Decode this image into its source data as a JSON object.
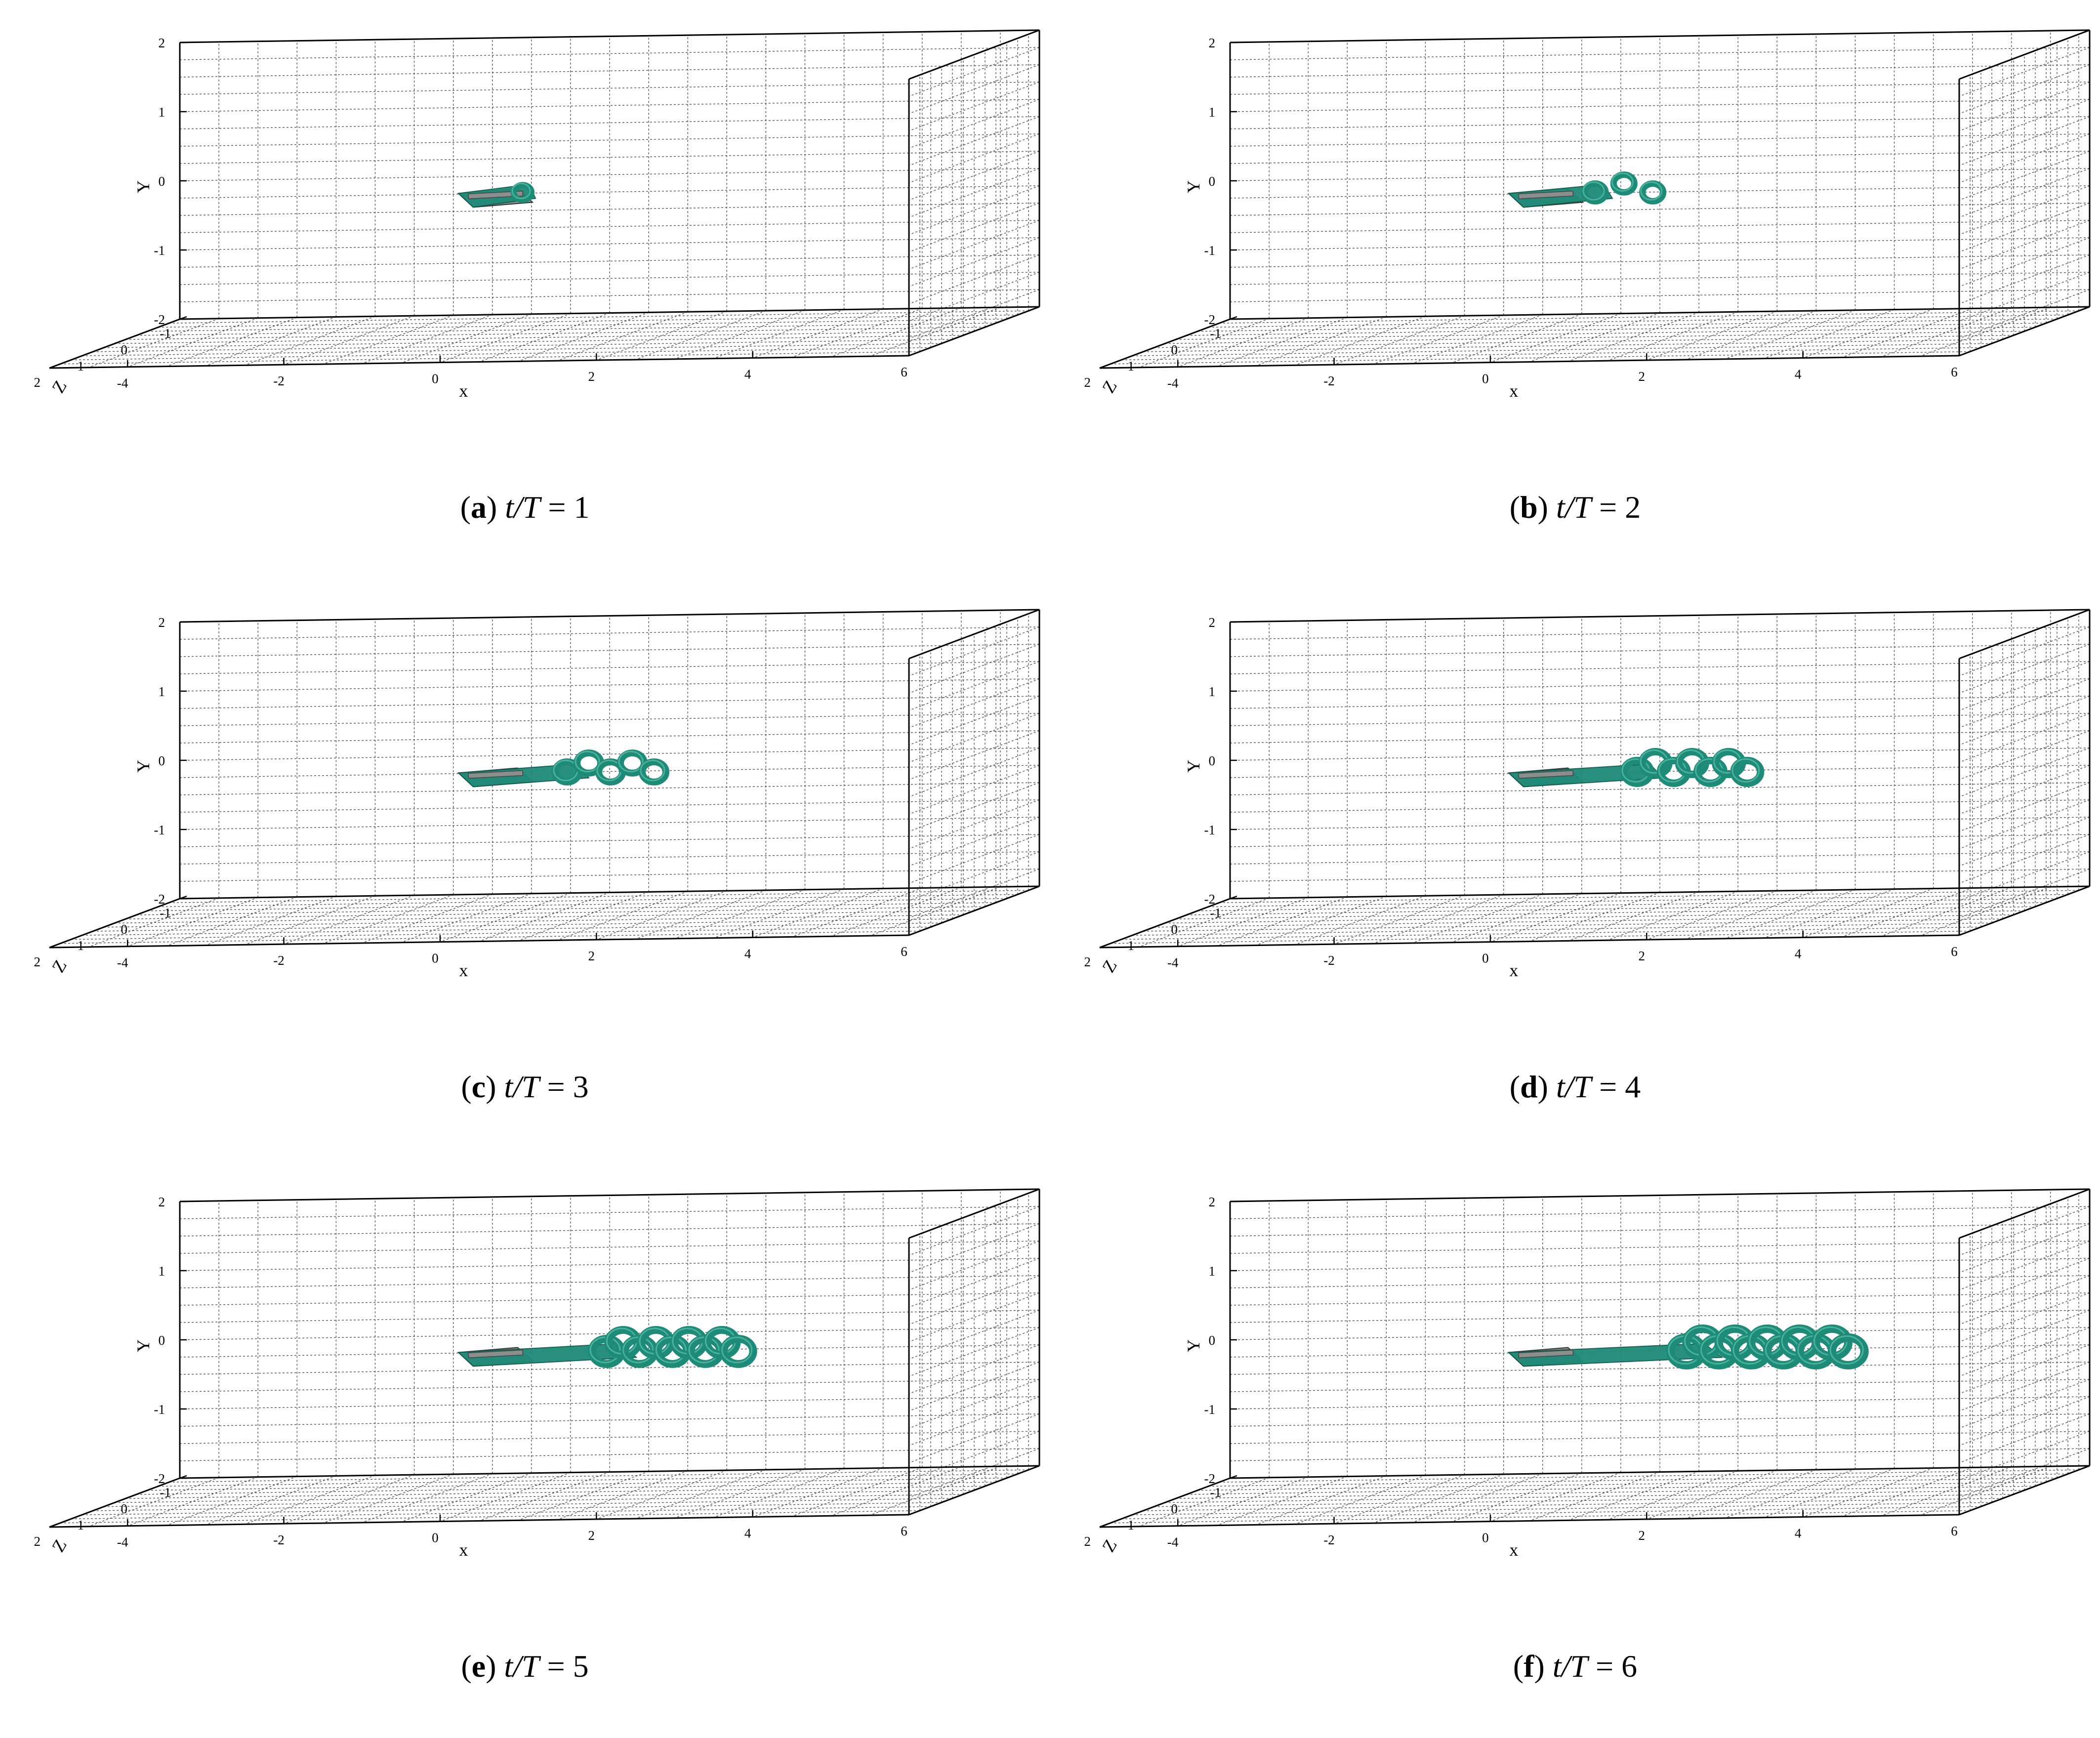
{
  "panels": [
    {
      "letter": "a",
      "t_over_T": "1"
    },
    {
      "letter": "b",
      "t_over_T": "2"
    },
    {
      "letter": "c",
      "t_over_T": "3"
    },
    {
      "letter": "d",
      "t_over_T": "4"
    },
    {
      "letter": "e",
      "t_over_T": "5"
    },
    {
      "letter": "f",
      "t_over_T": "6"
    }
  ],
  "caption_var": "t/T",
  "axes": {
    "x_label": "x",
    "y_label": "Y",
    "z_label": "Z",
    "x_ticks": [
      "-4",
      "-2",
      "0",
      "2",
      "4",
      "6"
    ],
    "y_ticks": [
      "-2",
      "-1",
      "0",
      "1",
      "2"
    ],
    "z_ticks": [
      "-1",
      "0",
      "1",
      "2"
    ],
    "xlim": [
      -5,
      6
    ],
    "ylim": [
      -2,
      2
    ],
    "zlim": [
      -1,
      2
    ]
  },
  "colors": {
    "vortex": "#1e8a78",
    "vortex_dark": "#0f5a4d",
    "vortex_light": "#5cc2ad",
    "plate": "#8a8f8e",
    "grid": "#555555"
  }
}
